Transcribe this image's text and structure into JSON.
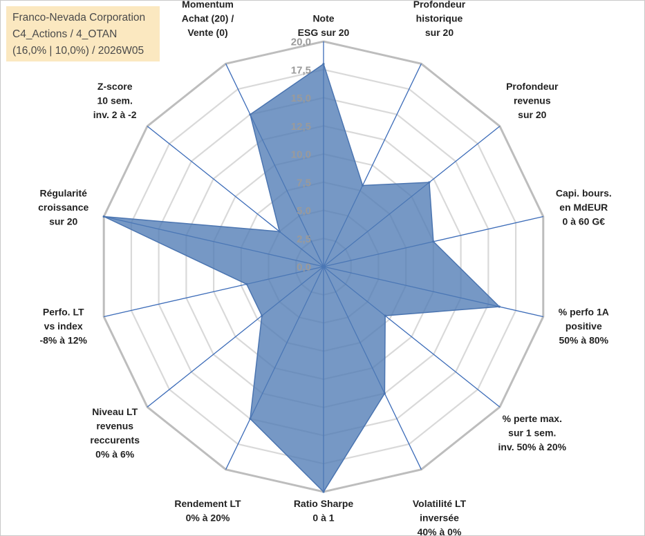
{
  "title_box": {
    "line1": "Franco-Nevada Corporation",
    "line2": "C4_Actions / 4_OTAN",
    "line3": "(16,0% | 10,0%) / 2026W05"
  },
  "chart_data": {
    "type": "radar",
    "title": "Franco-Nevada Corporation",
    "axes": [
      "Note|ESG sur 20",
      "Profondeur|historique|sur 20",
      "Profondeur|revenus|sur 20",
      "Capi. bours.|en MdEUR|0 à 60 G€",
      "% perfo 1A|positive|50% à 80%",
      "% perte max.|sur 1 sem.|inv. 50% à 20%",
      "Volatilité LT|inversée|40% à 0%",
      "Ratio Sharpe|0 à 1",
      "Rendement LT|0% à 20%",
      "Niveau LT|revenus|reccurents|0% à 6%",
      "Perfo. LT|vs index|-8% à 12%",
      "Régularité|croissance|sur 20",
      "Z-score|10 sem.|inv. 2 à -2",
      "Momentum|Achat (20) /|Vente (0)"
    ],
    "series": [
      {
        "name": "Franco-Nevada Corporation",
        "values": [
          18,
          8,
          12,
          10,
          16,
          7,
          12.5,
          20,
          15,
          7,
          7,
          20,
          5,
          15
        ]
      }
    ],
    "rmin": 0,
    "rmax": 20,
    "ticks": [
      "0,0",
      "2,5",
      "5,0",
      "7,5",
      "10,0",
      "12,5",
      "15,0",
      "17,5",
      "20,0"
    ],
    "grid": true,
    "legend": "none",
    "colors": {
      "fill": "#4f7bb5",
      "stroke": "#4a74b0",
      "spoke": "#3b6bb8",
      "ring_outer": "#bdbdbd",
      "ring_inner": "#d9d9d9",
      "tick_text": "#9a9a9a",
      "title_bg": "#fbe8c0"
    }
  }
}
